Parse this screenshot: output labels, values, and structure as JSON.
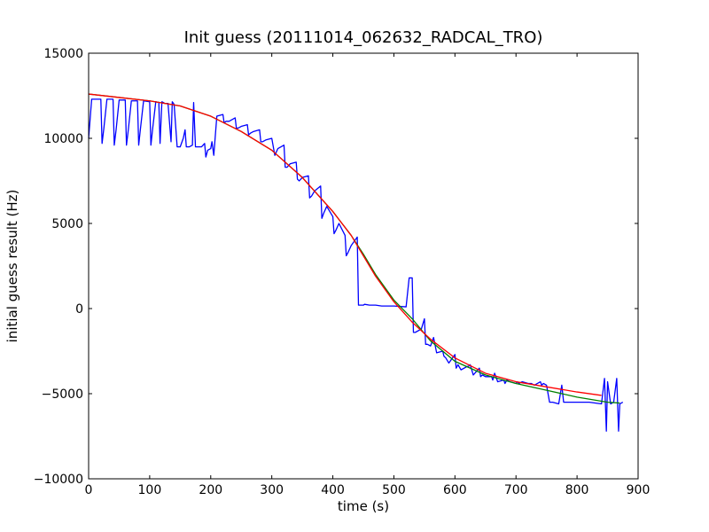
{
  "chart_data": {
    "type": "line",
    "title": "Init guess (20111014_062632_RADCAL_TRO)",
    "xlabel": "time (s)",
    "ylabel": "initial guess result (Hz)",
    "xlim": [
      0,
      900
    ],
    "ylim": [
      -10000,
      15000
    ],
    "x_ticks": [
      "0",
      "100",
      "200",
      "300",
      "400",
      "500",
      "600",
      "700",
      "800",
      "900"
    ],
    "y_ticks": [
      "15000",
      "10000",
      "5000",
      "0",
      "−5000",
      "−10000"
    ],
    "grid": false,
    "legend": "none",
    "series": [
      {
        "color": "#0000ff",
        "x": [
          0,
          5,
          10,
          20,
          22,
          25,
          30,
          40,
          42,
          45,
          50,
          60,
          62,
          65,
          70,
          80,
          82,
          85,
          90,
          100,
          102,
          105,
          110,
          115,
          117,
          120,
          125,
          130,
          135,
          137,
          140,
          145,
          150,
          155,
          158,
          160,
          165,
          170,
          172,
          175,
          180,
          182,
          185,
          190,
          192,
          195,
          200,
          202,
          205,
          210,
          220,
          222,
          225,
          230,
          240,
          242,
          245,
          250,
          260,
          262,
          265,
          270,
          280,
          282,
          285,
          290,
          300,
          302,
          305,
          310,
          320,
          322,
          325,
          330,
          340,
          342,
          345,
          350,
          360,
          362,
          365,
          370,
          380,
          382,
          385,
          390,
          400,
          402,
          405,
          410,
          420,
          422,
          425,
          430,
          440,
          442,
          445,
          450,
          452,
          460,
          470,
          480,
          500,
          520,
          525,
          530,
          532,
          535,
          545,
          550,
          552,
          555,
          560,
          562,
          565,
          570,
          580,
          582,
          585,
          590,
          600,
          602,
          605,
          610,
          620,
          622,
          625,
          630,
          640,
          642,
          645,
          650,
          660,
          662,
          665,
          670,
          680,
          682,
          685,
          690,
          700,
          702,
          705,
          710,
          720,
          722,
          725,
          730,
          740,
          742,
          745,
          750,
          755,
          758,
          760,
          770,
          775,
          778,
          780,
          800,
          820,
          840,
          845,
          848,
          850,
          855,
          860,
          865,
          868,
          870,
          875
        ],
        "y": [
          10000,
          12300,
          12300,
          12300,
          9700,
          10600,
          12300,
          12300,
          9600,
          10500,
          12250,
          12250,
          9600,
          10500,
          12200,
          12200,
          9600,
          10600,
          12200,
          12150,
          9600,
          10600,
          12150,
          12100,
          9700,
          12150,
          12050,
          12050,
          9800,
          12150,
          12000,
          9500,
          9500,
          10000,
          10500,
          9500,
          9500,
          9600,
          12100,
          9500,
          9500,
          9500,
          9500,
          9700,
          8900,
          9300,
          9400,
          9800,
          9000,
          11300,
          11400,
          10900,
          11000,
          11000,
          11200,
          10600,
          10600,
          10700,
          10800,
          10200,
          10300,
          10400,
          10500,
          9800,
          9800,
          9900,
          10000,
          9600,
          9000,
          9400,
          9600,
          8300,
          8300,
          8500,
          8600,
          7600,
          7500,
          7700,
          7800,
          6500,
          6600,
          6900,
          7200,
          5300,
          5600,
          6000,
          5400,
          4400,
          4600,
          5000,
          4300,
          3100,
          3300,
          3700,
          4200,
          200,
          200,
          200,
          250,
          200,
          200,
          150,
          150,
          100,
          1800,
          1800,
          -1400,
          -1400,
          -1200,
          -600,
          -2100,
          -2100,
          -2200,
          -2000,
          -1700,
          -2600,
          -2500,
          -2800,
          -2900,
          -3200,
          -2700,
          -3500,
          -3300,
          -3600,
          -3400,
          -3400,
          -3300,
          -3900,
          -3500,
          -4000,
          -3900,
          -4000,
          -4000,
          -4200,
          -3800,
          -4300,
          -4200,
          -4400,
          -4200,
          -4300,
          -4400,
          -4300,
          -4400,
          -4300,
          -4400,
          -4400,
          -4400,
          -4500,
          -4300,
          -4500,
          -4400,
          -4500,
          -5500,
          -5500,
          -5500,
          -5600,
          -4500,
          -5500,
          -5500,
          -5500,
          -5500,
          -5600,
          -4100,
          -7200,
          -4300,
          -5600,
          -5500,
          -4100,
          -7200,
          -5600,
          -5500
        ]
      },
      {
        "color": "#008000",
        "x": [
          0,
          50,
          100,
          150,
          200,
          250,
          300,
          350,
          400,
          430,
          450,
          470,
          500,
          530,
          560,
          600,
          650,
          700,
          750,
          800,
          850,
          870
        ],
        "y": [
          12600,
          12400,
          12200,
          11900,
          11300,
          10400,
          9300,
          7700,
          5700,
          4300,
          3200,
          2000,
          500,
          -600,
          -1900,
          -3100,
          -3900,
          -4400,
          -4800,
          -5200,
          -5500,
          -5550
        ]
      },
      {
        "color": "#ff0000",
        "x": [
          0,
          50,
          100,
          150,
          200,
          250,
          300,
          350,
          400,
          430,
          450,
          470,
          500,
          530,
          560,
          600,
          650,
          700,
          750,
          800,
          840
        ],
        "y": [
          12600,
          12400,
          12200,
          11900,
          11300,
          10400,
          9300,
          7700,
          5700,
          4300,
          3100,
          1900,
          400,
          -800,
          -1800,
          -2900,
          -3800,
          -4300,
          -4600,
          -4900,
          -5100
        ]
      }
    ]
  }
}
